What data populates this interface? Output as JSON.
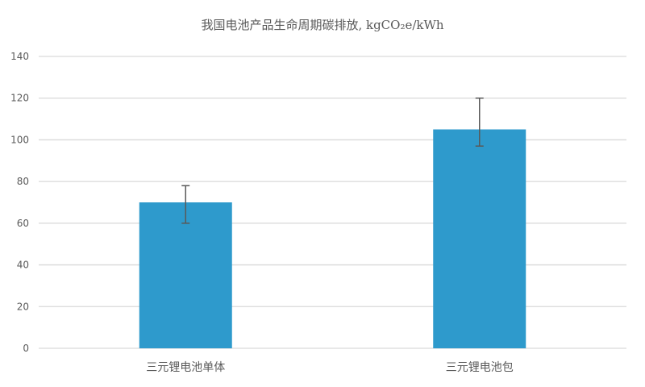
{
  "chart_data": {
    "type": "bar",
    "title": "我国电池产品生命周期碳排放, kgCO₂e/kWh",
    "categories": [
      "三元锂电池单体",
      "三元锂电池包"
    ],
    "values": [
      70,
      105
    ],
    "error_bars": [
      {
        "low": 60,
        "high": 78
      },
      {
        "low": 97,
        "high": 120
      }
    ],
    "xlabel": "",
    "ylabel": "",
    "ylim": [
      0,
      140
    ],
    "yticks": [
      0,
      20,
      40,
      60,
      80,
      100,
      120,
      140
    ],
    "grid": true,
    "colors": {
      "bar": "#2E9ACC",
      "grid": "#D9D9D9",
      "error_bar": "#595959",
      "text": "#595959"
    }
  }
}
